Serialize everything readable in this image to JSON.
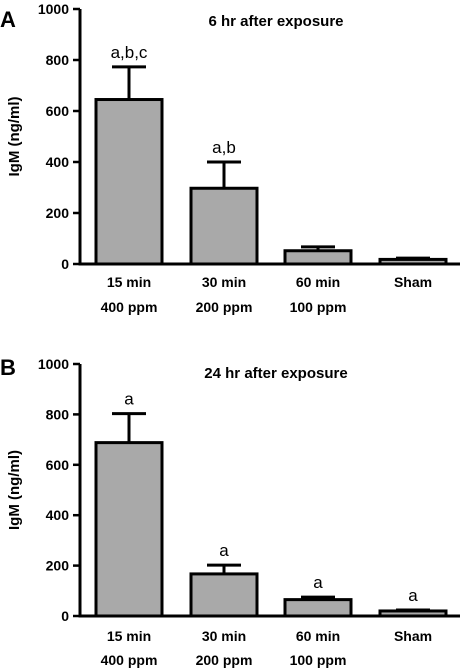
{
  "chart_data": [
    {
      "panel": "A",
      "type": "bar",
      "title": "6 hr after exposure",
      "ylabel": "IgM (ng/ml)",
      "xlabel": "",
      "ylim": [
        0,
        1000
      ],
      "yticks": [
        "0",
        "200",
        "400",
        "600",
        "800",
        "1000"
      ],
      "categories": [
        [
          "15 min",
          "400 ppm"
        ],
        [
          "30 min",
          "200 ppm"
        ],
        [
          "60 min",
          "100 ppm"
        ],
        [
          "Sham",
          ""
        ]
      ],
      "values": [
        645,
        297,
        52,
        18
      ],
      "errors": [
        128,
        103,
        15,
        5
      ],
      "annotations": [
        "a,b,c",
        "a,b",
        "",
        ""
      ],
      "bar_color": "#a9a9a9",
      "legend": "none"
    },
    {
      "panel": "B",
      "type": "bar",
      "title": "24 hr after exposure",
      "ylabel": "IgM (ng/ml)",
      "xlabel": "",
      "ylim": [
        0,
        1000
      ],
      "yticks": [
        "0",
        "200",
        "400",
        "600",
        "800",
        "1000"
      ],
      "categories": [
        [
          "15 min",
          "400 ppm"
        ],
        [
          "30 min",
          "200 ppm"
        ],
        [
          "60 min",
          "100 ppm"
        ],
        [
          "Sham",
          ""
        ]
      ],
      "values": [
        688,
        167,
        65,
        20
      ],
      "errors": [
        115,
        35,
        10,
        4
      ],
      "annotations": [
        "a",
        "a",
        "a",
        "a"
      ],
      "bar_color": "#a9a9a9",
      "legend": "none"
    }
  ]
}
